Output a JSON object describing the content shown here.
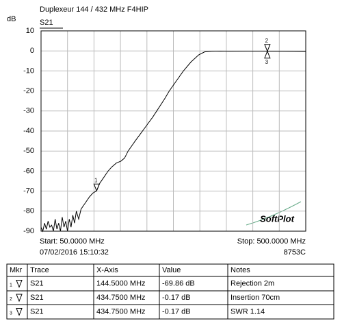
{
  "chart_data": {
    "type": "line",
    "title": "Duplexeur 144 / 432 MHz F4HIP",
    "y_label": "dB",
    "xlim": [
      50,
      500
    ],
    "ylim": [
      -90,
      10
    ],
    "xticks": [
      50,
      95,
      140,
      185,
      230,
      275,
      320,
      365,
      410,
      455,
      500
    ],
    "yticks": [
      10,
      0,
      -10,
      -20,
      -30,
      -40,
      -50,
      -60,
      -70,
      -80,
      -90
    ],
    "grid": true,
    "series": [
      {
        "name": "S21",
        "color": "#000000",
        "x": [
          50,
          53,
          56,
          59,
          62,
          65,
          68,
          71,
          74,
          77,
          80,
          83,
          86,
          89,
          92,
          95,
          98,
          101,
          104,
          107,
          110,
          114,
          118,
          125,
          132,
          138,
          144.5,
          150,
          157,
          164,
          170,
          178,
          186,
          192,
          198,
          210,
          220,
          230,
          240,
          250,
          260,
          268,
          280,
          292,
          305,
          318,
          328,
          340,
          355,
          370,
          400,
          434.75,
          460,
          480,
          500
        ],
        "values": [
          -88,
          -90,
          -86,
          -89,
          -85,
          -88,
          -87,
          -90,
          -84,
          -89,
          -86,
          -90,
          -83,
          -88,
          -85,
          -90,
          -84,
          -88,
          -82,
          -86,
          -80,
          -84,
          -79,
          -76,
          -73,
          -71,
          -69.86,
          -66,
          -63,
          -60,
          -58,
          -56,
          -55,
          -53.5,
          -50,
          -45,
          -41,
          -37,
          -33,
          -28.5,
          -24,
          -20,
          -15,
          -10,
          -5.5,
          -2,
          -0.5,
          -0.2,
          -0.1,
          -0.2,
          -0.15,
          -0.17,
          -0.2,
          -0.25,
          -0.3
        ]
      }
    ],
    "markers": [
      {
        "label": "1",
        "x": 144.5,
        "y": -69.86
      },
      {
        "label": "2",
        "x": 434.75,
        "y": -0.17
      },
      {
        "label": "3",
        "x": 434.75,
        "y": -0.17
      }
    ],
    "start_label": "Start: 50.0000 MHz",
    "stop_label": "Stop: 500.0000 MHz",
    "timestamp": "07/02/2016 15:10:32",
    "instrument": "8753C",
    "watermark": "SoftPlot"
  },
  "table": {
    "columns": [
      "Mkr",
      "Trace",
      "X-Axis",
      "Value",
      "Notes"
    ],
    "rows": [
      [
        "1",
        "S21",
        "144.5000 MHz",
        "-69.86 dB",
        "Rejection 2m"
      ],
      [
        "2",
        "S21",
        "434.7500 MHz",
        "-0.17 dB",
        "Insertion 70cm"
      ],
      [
        "3",
        "S21",
        "434.7500 MHz",
        "-0.17 dB",
        "SWR 1.14"
      ]
    ]
  }
}
